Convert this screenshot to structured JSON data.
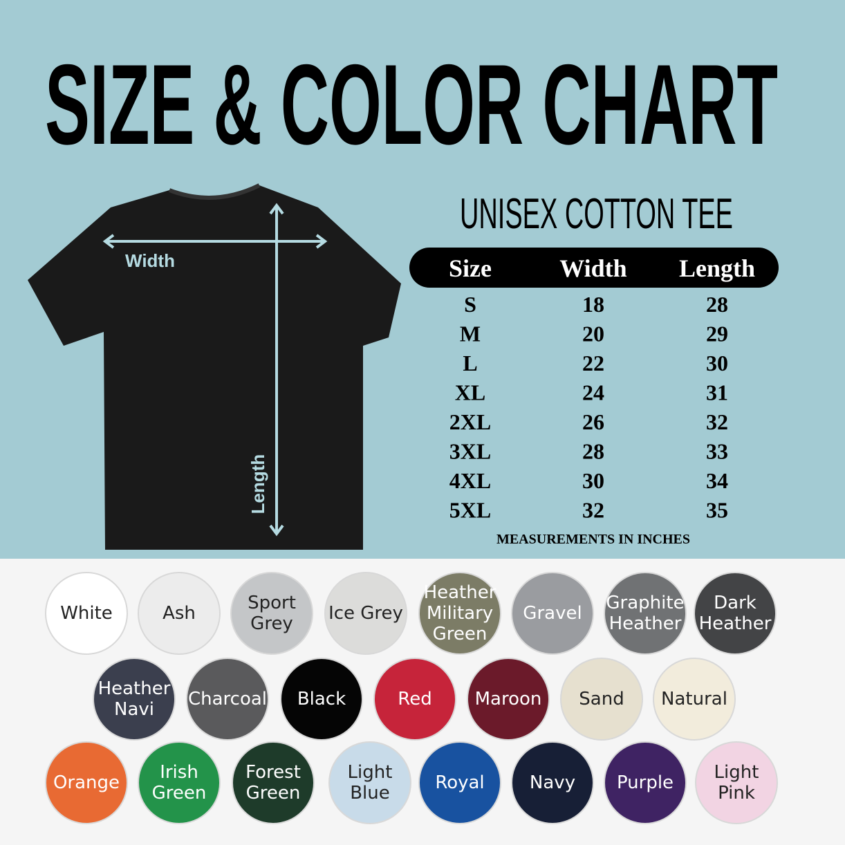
{
  "header": {
    "title": "SIZE & COLOR CHART"
  },
  "shirt": {
    "width_label": "Width",
    "length_label": "Length"
  },
  "table": {
    "title": "UNISEX COTTON TEE",
    "header": [
      "Size",
      "Width",
      "Length"
    ],
    "rows": [
      [
        "S",
        18,
        28
      ],
      [
        "M",
        20,
        29
      ],
      [
        "L",
        22,
        30
      ],
      [
        "XL",
        24,
        31
      ],
      [
        "2XL",
        26,
        32
      ],
      [
        "3XL",
        28,
        33
      ],
      [
        "4XL",
        30,
        34
      ],
      [
        "5XL",
        32,
        35
      ]
    ],
    "note": "MEASUREMENTS IN INCHES"
  },
  "colors": [
    {
      "name": "White",
      "color": "#ffffff",
      "text_color": "#222"
    },
    {
      "name": "Ash",
      "color": "#ececec",
      "text_color": "#222"
    },
    {
      "name": "Sport Grey",
      "color": "#c4c6c8",
      "text_color": "#222"
    },
    {
      "name": "Ice Grey",
      "color": "#dcdcda",
      "text_color": "#222"
    },
    {
      "name": "Heather Military Green",
      "color": "#7c7c66",
      "text_color": "#fff"
    },
    {
      "name": "Gravel",
      "color": "#9a9ca0",
      "text_color": "#fff"
    },
    {
      "name": "Graphite Heather",
      "color": "#707274",
      "text_color": "#fff"
    },
    {
      "name": "Dark Heather",
      "color": "#434446",
      "text_color": "#fff"
    },
    {
      "name": "Heather Navi",
      "color": "#3b3f4e",
      "text_color": "#fff"
    },
    {
      "name": "Charcoal",
      "color": "#5a5a5c",
      "text_color": "#fff"
    },
    {
      "name": "Black",
      "color": "#050505",
      "text_color": "#fff"
    },
    {
      "name": "Red",
      "color": "#c6243a",
      "text_color": "#fff"
    },
    {
      "name": "Maroon",
      "color": "#6b1a2a",
      "text_color": "#fff"
    },
    {
      "name": "Sand",
      "color": "#e6e0cf",
      "text_color": "#222"
    },
    {
      "name": "Natural",
      "color": "#f2ecdc",
      "text_color": "#222"
    },
    {
      "name": "Orange",
      "color": "#e86a33",
      "text_color": "#fff"
    },
    {
      "name": "Irish Green",
      "color": "#23934a",
      "text_color": "#fff"
    },
    {
      "name": "Forest Green",
      "color": "#1e3b2a",
      "text_color": "#fff"
    },
    {
      "name": "Light Blue",
      "color": "#c8dbe9",
      "text_color": "#222"
    },
    {
      "name": "Royal",
      "color": "#1852a0",
      "text_color": "#fff"
    },
    {
      "name": "Navy",
      "color": "#171f36",
      "text_color": "#fff"
    },
    {
      "name": "Purple",
      "color": "#3f2363",
      "text_color": "#fff"
    },
    {
      "name": "Light Pink",
      "color": "#f2d4e3",
      "text_color": "#222"
    }
  ]
}
